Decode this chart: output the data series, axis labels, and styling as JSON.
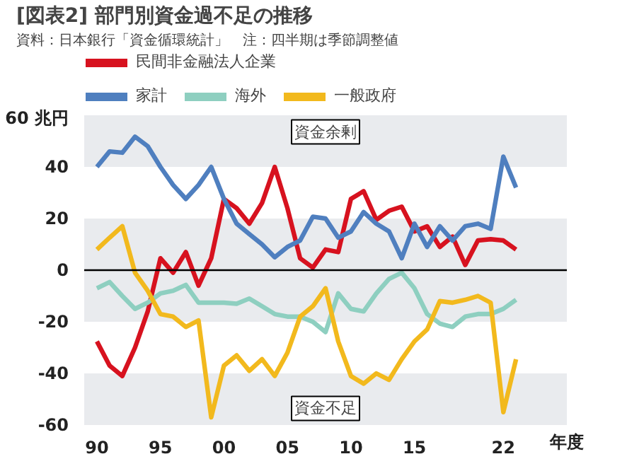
{
  "chart_data": {
    "type": "line",
    "title": "[図表2] 部門別資金過不足の推移",
    "subtitle": "資料：日本銀行「資金循環統計」　注：四半期は季節調整値",
    "xlabel": "年度",
    "x": [
      1990,
      1991,
      1992,
      1993,
      1994,
      1995,
      1996,
      1997,
      1998,
      1999,
      2000,
      2001,
      2002,
      2003,
      2004,
      2005,
      2006,
      2007,
      2008,
      2009,
      2010,
      2011,
      2012,
      2013,
      2014,
      2015,
      2016,
      2017,
      2018,
      2019,
      2020,
      2021,
      2022,
      2023
    ],
    "series": [
      {
        "name": "民間非金融法人企業",
        "color": "#d7121f",
        "values": [
          -27.6,
          -37,
          -41,
          -30,
          -16,
          4.6,
          -1,
          7,
          -6,
          4.6,
          27.6,
          24,
          18,
          26,
          40,
          24,
          4.6,
          1,
          8,
          7,
          27.6,
          30.6,
          19.5,
          23,
          24.6,
          15,
          17,
          9,
          13,
          2,
          11.5,
          12,
          11.5,
          8
        ]
      },
      {
        "name": "家計",
        "color": "#4f7fbf",
        "values": [
          40,
          46,
          45.5,
          51.7,
          48,
          40,
          33,
          27.6,
          33,
          40,
          27.6,
          18,
          14,
          10,
          5,
          9,
          11.5,
          20.7,
          20,
          12.6,
          15,
          22.5,
          18,
          15,
          4.6,
          18,
          9,
          17,
          11.5,
          17,
          18,
          16,
          44,
          32
        ]
      },
      {
        "name": "海外",
        "color": "#8ecfc0",
        "values": [
          -7,
          -4.6,
          -10,
          -15,
          -12.6,
          -9,
          -8,
          -5.7,
          -12.6,
          -12.6,
          -12.6,
          -13,
          -11,
          -14,
          -17,
          -18,
          -18,
          -20,
          -24,
          -9,
          -15,
          -16,
          -9,
          -3.4,
          -1,
          -7,
          -17,
          -20.7,
          -22,
          -18,
          -17,
          -17,
          -15,
          -11.5
        ]
      },
      {
        "name": "一般政府",
        "color": "#f2b91d",
        "values": [
          8,
          12.6,
          17,
          -1,
          -8,
          -17,
          -18,
          -22,
          -19.5,
          -57,
          -37,
          -33,
          -39,
          -34.5,
          -41,
          -32,
          -18,
          -14,
          -7,
          -27.6,
          -41,
          -44,
          -40,
          -42.5,
          -34.5,
          -27.6,
          -23,
          -12,
          -12.6,
          -11.5,
          -10,
          -12.6,
          -55,
          -34.5
        ]
      }
    ],
    "xlim": [
      1989,
      2027
    ],
    "xticks": [
      {
        "value": 1990,
        "label": "90"
      },
      {
        "value": 1995,
        "label": "95"
      },
      {
        "value": 2000,
        "label": "00"
      },
      {
        "value": 2005,
        "label": "05"
      },
      {
        "value": 2010,
        "label": "10"
      },
      {
        "value": 2015,
        "label": "15"
      },
      {
        "value": 2022,
        "label": "22"
      }
    ],
    "ylim": [
      -60,
      60
    ],
    "yticks": [
      {
        "value": 60,
        "label": "60 兆円"
      },
      40,
      20,
      0,
      -20,
      -40,
      -60
    ],
    "ref_lines": [
      {
        "axis": "y",
        "value": 0,
        "color": "#000000"
      }
    ],
    "annotations": [
      "資金余剰",
      "資金不足"
    ],
    "bands": [
      {
        "axis": "y",
        "from": 40,
        "to": 60,
        "color": "#e9ebee"
      },
      {
        "axis": "y",
        "from": -20,
        "to": 20,
        "color": "#e9ebee"
      },
      {
        "axis": "y",
        "from": -60,
        "to": -40,
        "color": "#e9ebee"
      }
    ],
    "legend": "top"
  }
}
